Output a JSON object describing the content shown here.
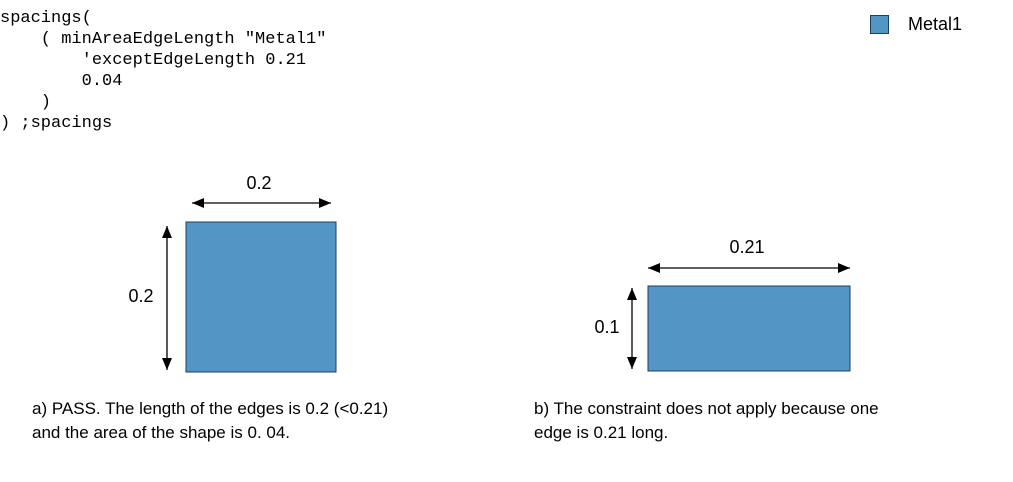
{
  "code_lines": [
    "spacings(",
    "    ( minAreaEdgeLength \"Metal1\"",
    "        'exceptEdgeLength 0.21",
    "        0.04",
    "    )",
    ") ;spacings"
  ],
  "legend": {
    "label": "Metal1",
    "color": "#5396c5"
  },
  "shape_a": {
    "width_label": "0.2",
    "height_label": "0.2"
  },
  "shape_b": {
    "width_label": "0.21",
    "height_label": "0.1"
  },
  "caption_a": {
    "line1": "a) PASS. The length of the edges is 0.2 (<0.21)",
    "line2": "and the area of the shape is 0. 04."
  },
  "caption_b": {
    "line1": "b) The constraint does not apply because one",
    "line2": "edge is 0.21 long."
  }
}
